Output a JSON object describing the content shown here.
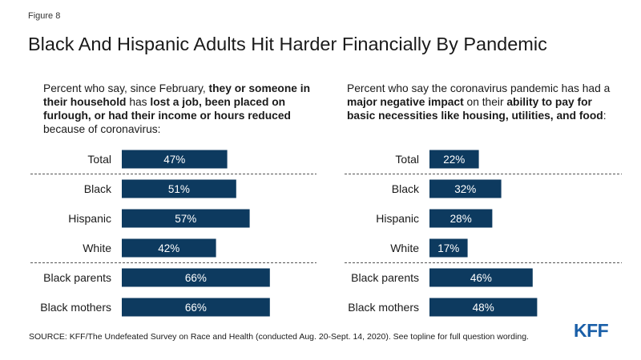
{
  "figure_label": "Figure 8",
  "title": "Black And Hispanic Adults Hit Harder Financially By Pandemic",
  "questions": {
    "left": {
      "parts": [
        {
          "text": "Percent who say, since February, ",
          "bold": false
        },
        {
          "text": "they or someone in their household",
          "bold": true
        },
        {
          "text": " has ",
          "bold": false
        },
        {
          "text": "lost a job, been placed on furlough, or had their income or hours reduced",
          "bold": true
        },
        {
          "text": " because of coronavirus:",
          "bold": false
        }
      ]
    },
    "right": {
      "parts": [
        {
          "text": "Percent who say the coronavirus pandemic has had a ",
          "bold": false
        },
        {
          "text": "major negative impact",
          "bold": true
        },
        {
          "text": " on their ",
          "bold": false
        },
        {
          "text": "ability to pay for basic necessities like housing, utilities, and food",
          "bold": true
        },
        {
          "text": ":",
          "bold": false
        }
      ]
    }
  },
  "colors": {
    "bar": "#0d3a5f",
    "bar_label": "#ffffff",
    "divider": "#555555"
  },
  "chart_data": [
    {
      "type": "bar",
      "orientation": "horizontal",
      "categories": [
        "Total",
        "Black",
        "Hispanic",
        "White",
        "Black parents",
        "Black mothers"
      ],
      "values": [
        47,
        51,
        57,
        42,
        66,
        66
      ],
      "value_labels": [
        "47%",
        "51%",
        "57%",
        "42%",
        "66%",
        "66%"
      ],
      "unit": "%"
    },
    {
      "type": "bar",
      "orientation": "horizontal",
      "categories": [
        "Total",
        "Black",
        "Hispanic",
        "White",
        "Black parents",
        "Black mothers"
      ],
      "values": [
        22,
        32,
        28,
        17,
        46,
        48
      ],
      "value_labels": [
        "22%",
        "32%",
        "28%",
        "17%",
        "46%",
        "48%"
      ],
      "unit": "%"
    }
  ],
  "source": "SOURCE: KFF/The Undefeated Survey on Race and Health (conducted Aug. 20-Sept. 14, 2020). See topline for full question wording.",
  "logo": "KFF"
}
